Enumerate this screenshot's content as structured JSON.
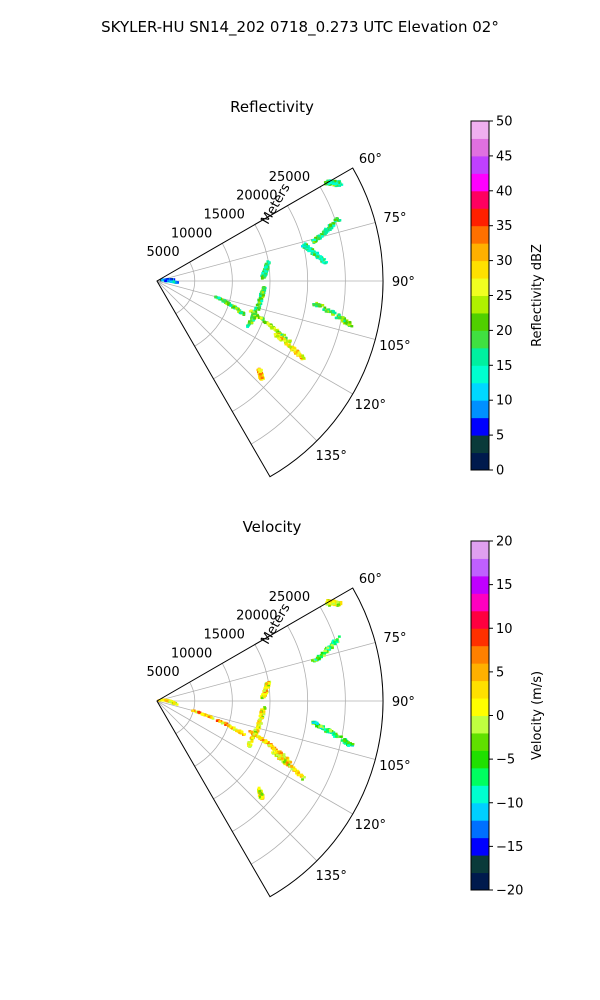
{
  "figure": {
    "suptitle": "SKYLER-HU  SN14_202  0718_0.273 UTC Elevation 02°"
  },
  "chart_data": [
    {
      "type": "polar-sector",
      "title": "Reflectivity",
      "range_label": "Meters",
      "r_ticks": [
        5000,
        10000,
        15000,
        20000,
        25000
      ],
      "r_tick_labels": [
        "5000",
        "10000",
        "15000",
        "20000",
        "25000"
      ],
      "r_max": 30000,
      "azimuth_range": [
        60,
        150
      ],
      "theta_ticks": [
        60,
        75,
        90,
        105,
        120,
        135
      ],
      "theta_tick_labels": [
        "60°",
        "75°",
        "90°",
        "105°",
        "120°",
        "135°"
      ],
      "grid": true,
      "colorbar": {
        "label": "Reflectivity dBZ",
        "min": 0,
        "max": 50,
        "ticks": [
          0,
          5,
          10,
          15,
          20,
          25,
          30,
          35,
          40,
          45,
          50
        ],
        "tick_labels": [
          "0",
          "5",
          "10",
          "15",
          "20",
          "25",
          "30",
          "35",
          "40",
          "45",
          "50"
        ]
      },
      "echo_features": [
        {
          "az": [
            88.5,
            80.5
          ],
          "r": [
            14000,
            15000
          ],
          "value": 17
        },
        {
          "az": [
            117,
            93
          ],
          "r": [
            13500,
            14200
          ],
          "value": 19
        },
        {
          "az": [
            76,
            71
          ],
          "r": [
            21500,
            25500
          ],
          "value": 18
        },
        {
          "az": [
            98,
            103
          ],
          "r": [
            21000,
            26500
          ],
          "value": 20
        },
        {
          "az": [
            105,
            111
          ],
          "r": [
            8000,
            12300
          ],
          "value": 19
        },
        {
          "az": [
            108,
            115
          ],
          "r": [
            13000,
            19500
          ],
          "value": 22
        },
        {
          "az": [
            114,
            118
          ],
          "r": [
            17000,
            22000
          ],
          "value": 28
        },
        {
          "az": [
            131,
            133
          ],
          "r": [
            18000,
            19000
          ],
          "value": 30
        },
        {
          "az": [
            76,
            84
          ],
          "r": [
            20000,
            22500
          ],
          "value": 16
        },
        {
          "az": [
            82,
            86
          ],
          "r": [
            800,
            2000
          ],
          "value": 6
        },
        {
          "az": [
            90,
            95
          ],
          "r": [
            1200,
            2600
          ],
          "value": 11
        },
        {
          "az": [
            60,
            62
          ],
          "r": [
            26000,
            27500
          ],
          "value": 18
        }
      ]
    },
    {
      "type": "polar-sector",
      "title": "Velocity",
      "range_label": "Meters",
      "r_ticks": [
        5000,
        10000,
        15000,
        20000,
        25000
      ],
      "r_tick_labels": [
        "5000",
        "10000",
        "15000",
        "20000",
        "25000"
      ],
      "r_max": 30000,
      "azimuth_range": [
        60,
        150
      ],
      "theta_ticks": [
        60,
        75,
        90,
        105,
        120,
        135
      ],
      "theta_tick_labels": [
        "60°",
        "75°",
        "90°",
        "105°",
        "120°",
        "135°"
      ],
      "grid": true,
      "colorbar": {
        "label": "Velocity (m/s)",
        "min": -20,
        "max": 20,
        "ticks": [
          -20,
          -15,
          -10,
          -5,
          0,
          5,
          10,
          15,
          20
        ],
        "tick_labels": [
          "−20",
          "−15",
          "−10",
          "−5",
          "0",
          "5",
          "10",
          "15",
          "20"
        ]
      },
      "echo_features": [
        {
          "az": [
            88.5,
            80.5
          ],
          "r": [
            14000,
            15000
          ],
          "value": 2
        },
        {
          "az": [
            117,
            93
          ],
          "r": [
            13500,
            14200
          ],
          "value": 1
        },
        {
          "az": [
            76,
            71
          ],
          "r": [
            21500,
            25500
          ],
          "value": -5
        },
        {
          "az": [
            98,
            103
          ],
          "r": [
            21000,
            26500
          ],
          "value": -6
        },
        {
          "az": [
            105,
            111
          ],
          "r": [
            5000,
            12300
          ],
          "value": 4
        },
        {
          "az": [
            108,
            115
          ],
          "r": [
            13000,
            19500
          ],
          "value": 3
        },
        {
          "az": [
            114,
            118
          ],
          "r": [
            17000,
            22000
          ],
          "value": 2
        },
        {
          "az": [
            131,
            133
          ],
          "r": [
            18000,
            19000
          ],
          "value": 1
        },
        {
          "az": [
            80,
            100
          ],
          "r": [
            500,
            2500
          ],
          "value": 1
        },
        {
          "az": [
            60,
            62
          ],
          "r": [
            26000,
            27500
          ],
          "value": 0
        }
      ]
    }
  ]
}
